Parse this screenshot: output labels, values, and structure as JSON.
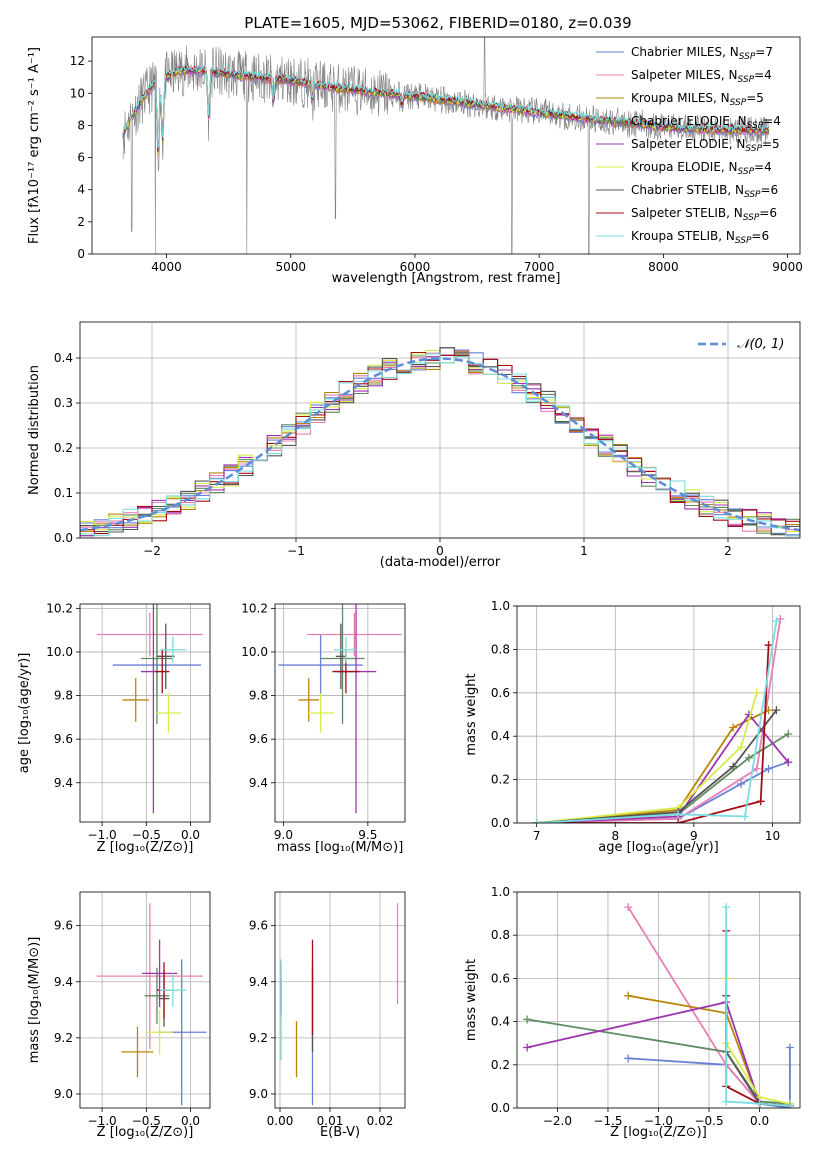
{
  "figure": {
    "title": "PLATE=1605, MJD=53062, FIBERID=0180, z=0.039"
  },
  "colors": [
    "#6a7fd6",
    "#e87fb6",
    "#b8860b",
    "#5f8c5f",
    "#a035b0",
    "#d7ec4a",
    "#555555",
    "#a30f16",
    "#7adde0"
  ],
  "chart_data": [
    {
      "id": "spectrum",
      "type": "line",
      "xlabel": "wavelength [Angstrom, rest frame]",
      "ylabel": "Flux [fλ10⁻¹⁷ erg cm⁻² s⁻¹ A⁻¹]",
      "xlim": [
        3400,
        9100
      ],
      "ylim": [
        0,
        13.5
      ],
      "xticks": [
        4000,
        5000,
        6000,
        7000,
        8000,
        9000
      ],
      "yticks": [
        0,
        2,
        4,
        6,
        8,
        10,
        12
      ],
      "legend_position": "top-right",
      "legend": [
        {
          "label": "Chabrier MILES, N",
          "sub": "SSP",
          "tail": "=7"
        },
        {
          "label": "Salpeter MILES, N",
          "sub": "SSP",
          "tail": "=4"
        },
        {
          "label": "Kroupa MILES, N",
          "sub": "SSP",
          "tail": "=5"
        },
        {
          "label": "Chabrier ELODIE, N",
          "sub": "SSP",
          "tail": "=4"
        },
        {
          "label": "Salpeter ELODIE, N",
          "sub": "SSP",
          "tail": "=5"
        },
        {
          "label": "Kroupa ELODIE, N",
          "sub": "SSP",
          "tail": "=4"
        },
        {
          "label": "Chabrier STELIB, N",
          "sub": "SSP",
          "tail": "=6"
        },
        {
          "label": "Salpeter STELIB, N",
          "sub": "SSP",
          "tail": "=6"
        },
        {
          "label": "Kroupa STELIB, N",
          "sub": "SSP",
          "tail": "=6"
        }
      ],
      "observed_color": "#808080",
      "model_anchor_x": [
        3650,
        3700,
        3800,
        3900,
        4000,
        4100,
        4300,
        4500,
        4700,
        5000,
        5300,
        5600,
        6000,
        6300,
        6600,
        6900,
        7200,
        7500,
        7800,
        8000,
        8200,
        8500,
        8800
      ],
      "model_anchor_y": [
        7.5,
        8.2,
        9.6,
        10.6,
        11.0,
        11.4,
        11.4,
        11.2,
        11.0,
        10.8,
        10.4,
        10.1,
        9.8,
        9.5,
        9.2,
        8.9,
        8.6,
        8.3,
        8.1,
        7.9,
        7.8,
        7.7,
        7.7
      ],
      "model_dips": [
        {
          "x": 3933,
          "y": 6.0
        },
        {
          "x": 3968,
          "y": 7.0
        },
        {
          "x": 4340,
          "y": 8.5
        },
        {
          "x": 4861,
          "y": 9.5
        },
        {
          "x": 5175,
          "y": 9.6
        },
        {
          "x": 5893,
          "y": 9.3
        }
      ],
      "observed_extremes": [
        {
          "x": 3720,
          "y": 1.4
        },
        {
          "x": 3910,
          "y": 0.0
        },
        {
          "x": 4645,
          "y": 0.0
        },
        {
          "x": 5360,
          "y": 2.2
        },
        {
          "x": 6560,
          "y": 13.5
        },
        {
          "x": 6780,
          "y": 0.0
        },
        {
          "x": 7400,
          "y": 0.0
        }
      ]
    },
    {
      "id": "residuals",
      "type": "step",
      "xlabel": "(data-model)/error",
      "ylabel": "Normed distribution",
      "xlim": [
        -2.5,
        2.5
      ],
      "ylim": [
        0,
        0.48
      ],
      "xticks": [
        -2,
        -1,
        0,
        1,
        2
      ],
      "xticklabels": [
        "−2",
        "−1",
        "0",
        "1",
        "2"
      ],
      "yticks": [
        0.0,
        0.1,
        0.2,
        0.3,
        0.4
      ],
      "yticklabels": [
        "0.0",
        "0.1",
        "0.2",
        "0.3",
        "0.4"
      ],
      "grid": true,
      "bin_width": 0.1,
      "reference_curve": {
        "label": "𝒩(0, 1)",
        "mean": 0,
        "sigma": 1,
        "color": "#5b8dd9",
        "style": "dashed"
      },
      "legend_position": "top-right"
    },
    {
      "id": "age-vs-Z",
      "type": "errorbar",
      "xlabel": "Z [log₁₀(Z/Z⊙)]",
      "ylabel": "age  [log₁₀(age/yr)]",
      "xlim": [
        -1.25,
        0.22
      ],
      "ylim": [
        9.22,
        10.22
      ],
      "xticks": [
        -1.0,
        -0.5,
        0.0
      ],
      "xticklabels": [
        "−1.0",
        "−0.5",
        "0.0"
      ],
      "yticks": [
        9.4,
        9.6,
        9.8,
        10.0,
        10.2
      ],
      "yticklabels": [
        "9.4",
        "9.6",
        "9.8",
        "10.0",
        "10.2"
      ],
      "points": [
        {
          "x": -0.38,
          "xerr": 0.5,
          "y": 9.94,
          "yerr": 0.14
        },
        {
          "x": -0.46,
          "xerr": 0.6,
          "y": 10.08,
          "yerr": 0.1
        },
        {
          "x": -0.62,
          "xerr": 0.15,
          "y": 9.78,
          "yerr": 0.1
        },
        {
          "x": -0.38,
          "xerr": 0.18,
          "y": 9.97,
          "yerr": 0.3
        },
        {
          "x": -0.42,
          "xerr": 0.14,
          "y": 9.91,
          "yerr": 0.65
        },
        {
          "x": -0.25,
          "xerr": 0.14,
          "y": 9.72,
          "yerr": 0.09
        },
        {
          "x": -0.28,
          "xerr": 0.1,
          "y": 9.98,
          "yerr": 0.15
        },
        {
          "x": -0.32,
          "xerr": 0.08,
          "y": 9.91,
          "yerr": 0.1
        },
        {
          "x": -0.2,
          "xerr": 0.15,
          "y": 10.01,
          "yerr": 0.06
        }
      ]
    },
    {
      "id": "age-vs-mass",
      "type": "errorbar",
      "xlabel": "mass [log₁₀(M/M⊙)]",
      "ylabel": "",
      "xlim": [
        8.95,
        9.72
      ],
      "ylim": [
        9.22,
        10.22
      ],
      "xticks": [
        9.0,
        9.5
      ],
      "xticklabels": [
        "9.0",
        "9.5"
      ],
      "yticks": [
        9.4,
        9.6,
        9.8,
        10.0,
        10.2
      ],
      "yticklabels": [
        "9.4",
        "9.6",
        "9.8",
        "10.0",
        "10.2"
      ],
      "points": [
        {
          "x": 9.22,
          "xerr": 0.25,
          "y": 9.94,
          "yerr": 0.14
        },
        {
          "x": 9.42,
          "xerr": 0.28,
          "y": 10.08,
          "yerr": 0.1
        },
        {
          "x": 9.15,
          "xerr": 0.06,
          "y": 9.78,
          "yerr": 0.1
        },
        {
          "x": 9.35,
          "xerr": 0.13,
          "y": 9.97,
          "yerr": 0.3
        },
        {
          "x": 9.43,
          "xerr": 0.12,
          "y": 9.91,
          "yerr": 0.65
        },
        {
          "x": 9.22,
          "xerr": 0.08,
          "y": 9.72,
          "yerr": 0.09
        },
        {
          "x": 9.34,
          "xerr": 0.03,
          "y": 9.98,
          "yerr": 0.15
        },
        {
          "x": 9.37,
          "xerr": 0.08,
          "y": 9.91,
          "yerr": 0.1
        },
        {
          "x": 9.37,
          "xerr": 0.07,
          "y": 10.01,
          "yerr": 0.06
        }
      ]
    },
    {
      "id": "weight-vs-age",
      "type": "line",
      "xlabel": "age  [log₁₀(age/yr)]",
      "ylabel": "mass weight",
      "xlim": [
        6.75,
        10.35
      ],
      "ylim": [
        0,
        1
      ],
      "xticks": [
        7,
        8,
        9,
        10
      ],
      "yticks": [
        0.0,
        0.2,
        0.4,
        0.6,
        0.8,
        1.0
      ],
      "yticklabels": [
        "0.0",
        "0.2",
        "0.4",
        "0.6",
        "0.8",
        "1.0"
      ],
      "series": [
        {
          "x": [
            7.0,
            8.8,
            9.6,
            9.95,
            10.2
          ],
          "y": [
            0.0,
            0.02,
            0.18,
            0.25,
            0.28
          ]
        },
        {
          "x": [
            7.0,
            8.8,
            9.8,
            10.1
          ],
          "y": [
            0.0,
            0.02,
            0.25,
            0.94
          ]
        },
        {
          "x": [
            7.0,
            8.8,
            9.5,
            9.95
          ],
          "y": [
            0.0,
            0.06,
            0.44,
            0.52
          ]
        },
        {
          "x": [
            7.0,
            8.8,
            9.7,
            10.2
          ],
          "y": [
            0.0,
            0.04,
            0.3,
            0.41
          ]
        },
        {
          "x": [
            7.0,
            8.8,
            9.7,
            10.2
          ],
          "y": [
            0.0,
            0.03,
            0.5,
            0.28
          ]
        },
        {
          "x": [
            7.0,
            8.8,
            9.6,
            9.8
          ],
          "y": [
            0.0,
            0.07,
            0.35,
            0.6
          ]
        },
        {
          "x": [
            7.0,
            8.8,
            9.5,
            10.05
          ],
          "y": [
            0.0,
            0.05,
            0.26,
            0.52
          ]
        },
        {
          "x": [
            7.0,
            8.8,
            9.85,
            9.95
          ],
          "y": [
            0.0,
            0.0,
            0.1,
            0.82
          ]
        },
        {
          "x": [
            7.0,
            8.8,
            9.65,
            10.05
          ],
          "y": [
            0.0,
            0.04,
            0.03,
            0.93
          ]
        }
      ]
    },
    {
      "id": "mass-vs-Z",
      "type": "errorbar",
      "xlabel": "Z [log₁₀(Z/Z⊙)]",
      "ylabel": "mass [log₁₀(M/M⊙)]",
      "xlim": [
        -1.25,
        0.22
      ],
      "ylim": [
        8.95,
        9.72
      ],
      "xticks": [
        -1.0,
        -0.5,
        0.0
      ],
      "xticklabels": [
        "−1.0",
        "−0.5",
        "0.0"
      ],
      "yticks": [
        9.0,
        9.2,
        9.4,
        9.6
      ],
      "yticklabels": [
        "9.0",
        "9.2",
        "9.4",
        "9.6"
      ],
      "points": [
        {
          "x": -0.1,
          "xerr": 0.28,
          "y": 9.22,
          "yerr": 0.26
        },
        {
          "x": -0.46,
          "xerr": 0.6,
          "y": 9.42,
          "yerr": 0.26
        },
        {
          "x": -0.6,
          "xerr": 0.18,
          "y": 9.15,
          "yerr": 0.09
        },
        {
          "x": -0.38,
          "xerr": 0.14,
          "y": 9.35,
          "yerr": 0.1
        },
        {
          "x": -0.35,
          "xerr": 0.2,
          "y": 9.43,
          "yerr": 0.12
        },
        {
          "x": -0.35,
          "xerr": 0.15,
          "y": 9.22,
          "yerr": 0.08
        },
        {
          "x": -0.3,
          "xerr": 0.06,
          "y": 9.34,
          "yerr": 0.1
        },
        {
          "x": -0.3,
          "xerr": 0.08,
          "y": 9.37,
          "yerr": 0.1
        },
        {
          "x": -0.2,
          "xerr": 0.15,
          "y": 9.37,
          "yerr": 0.06
        }
      ]
    },
    {
      "id": "mass-vs-EBV",
      "type": "errorbar",
      "xlabel": "E(B-V)",
      "ylabel": "",
      "xlim": [
        -0.001,
        0.025
      ],
      "ylim": [
        8.95,
        9.72
      ],
      "xticks": [
        0.0,
        0.01,
        0.02
      ],
      "xticklabels": [
        "0.00",
        "0.01",
        "0.02"
      ],
      "yticks": [
        9.0,
        9.2,
        9.4,
        9.6
      ],
      "yticklabels": [
        "9.0",
        "9.2",
        "9.4",
        "9.6"
      ],
      "points": [
        {
          "x": 0.0065,
          "y": 9.22,
          "yerr": 0.26
        },
        {
          "x": 0.0235,
          "y": 9.5,
          "yerr": 0.18
        },
        {
          "x": 0.0033,
          "y": 9.16,
          "yerr": 0.1
        },
        {
          "x": 0.0002,
          "y": 9.37,
          "yerr": 0.1
        },
        {
          "x": 0.0002,
          "y": 9.35,
          "yerr": 0.06
        },
        {
          "x": 0.0002,
          "y": 9.2,
          "yerr": 0.08
        },
        {
          "x": 0.0065,
          "y": 9.3,
          "yerr": 0.15
        },
        {
          "x": 0.0065,
          "y": 9.38,
          "yerr": 0.17
        },
        {
          "x": 0.0002,
          "y": 9.3,
          "yerr": 0.18
        }
      ]
    },
    {
      "id": "weight-vs-Z",
      "type": "line",
      "xlabel": "Z [log₁₀(Z/Z⊙)]",
      "ylabel": "mass weight",
      "xlim": [
        -2.4,
        0.4
      ],
      "ylim": [
        0,
        1
      ],
      "xticks": [
        -2.0,
        -1.5,
        -1.0,
        -0.5,
        0.0
      ],
      "xticklabels": [
        "−2.0",
        "−1.5",
        "−1.0",
        "−0.5",
        "0.0"
      ],
      "yticks": [
        0.0,
        0.2,
        0.4,
        0.6,
        0.8,
        1.0
      ],
      "yticklabels": [
        "0.0",
        "0.2",
        "0.4",
        "0.6",
        "0.8",
        "1.0"
      ],
      "series": [
        {
          "x": [
            -1.3,
            -0.33,
            0.0,
            0.3,
            0.3
          ],
          "y": [
            0.23,
            0.2,
            0.02,
            0.0,
            0.28
          ]
        },
        {
          "x": [
            -1.3,
            -0.33,
            0.0,
            0.3
          ],
          "y": [
            0.93,
            0.2,
            0.02,
            0.01
          ]
        },
        {
          "x": [
            -1.3,
            -0.33,
            0.0,
            0.3
          ],
          "y": [
            0.52,
            0.44,
            0.02,
            0.01
          ]
        },
        {
          "x": [
            -2.3,
            -0.33,
            0.0,
            0.3
          ],
          "y": [
            0.41,
            0.26,
            0.03,
            0.02
          ]
        },
        {
          "x": [
            -2.3,
            -0.33,
            0.0,
            0.3
          ],
          "y": [
            0.28,
            0.49,
            0.02,
            0.01
          ]
        },
        {
          "x": [
            -0.33,
            -0.33,
            0.0,
            0.3
          ],
          "y": [
            0.6,
            0.3,
            0.05,
            0.02
          ]
        },
        {
          "x": [
            -0.33,
            -0.33,
            0.0,
            0.3
          ],
          "y": [
            0.52,
            0.26,
            0.02,
            0.01
          ]
        },
        {
          "x": [
            -0.33,
            -0.33,
            0.0,
            0.3
          ],
          "y": [
            0.82,
            0.1,
            0.02,
            0.01
          ]
        },
        {
          "x": [
            -0.33,
            -0.33,
            0.0,
            0.3
          ],
          "y": [
            0.93,
            0.03,
            0.02,
            0.01
          ]
        }
      ]
    }
  ]
}
